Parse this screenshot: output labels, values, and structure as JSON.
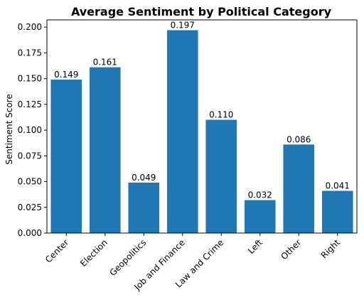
{
  "chart_data": {
    "type": "bar",
    "title": "Average Sentiment by Political Category",
    "xlabel": "",
    "ylabel": "Sentiment Score",
    "categories": [
      "Center",
      "Election",
      "Geopolitics",
      "Job and Finance",
      "Law and Crime",
      "Left",
      "Other",
      "Right"
    ],
    "values": [
      0.149,
      0.161,
      0.049,
      0.197,
      0.11,
      0.032,
      0.086,
      0.041
    ],
    "data_labels": [
      "0.149",
      "0.161",
      "0.049",
      "0.197",
      "0.110",
      "0.032",
      "0.086",
      "0.041"
    ],
    "ylim": [
      0,
      0.207
    ],
    "yticks": [
      0.0,
      0.025,
      0.05,
      0.075,
      0.1,
      0.125,
      0.15,
      0.175,
      0.2
    ],
    "ytick_labels": [
      "0.000",
      "0.025",
      "0.050",
      "0.075",
      "0.100",
      "0.125",
      "0.150",
      "0.175",
      "0.200"
    ],
    "bar_color": "#1f77b4",
    "grid": false,
    "legend": "none"
  }
}
